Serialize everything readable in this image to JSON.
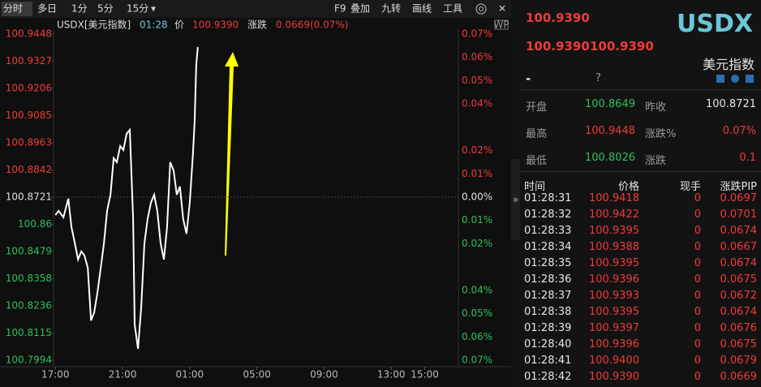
{
  "toolbar": {
    "tabs": [
      "分时",
      "多日",
      "1分",
      "5分",
      "15分"
    ],
    "tools": [
      "F9",
      "叠加",
      "九转",
      "画线",
      "工具"
    ]
  },
  "chart_header": {
    "symbol": "USDX[美元指数]",
    "time": "01:28",
    "price_label": "价",
    "price": "100.9390",
    "change_label": "涨跌",
    "change": "0.0669(0.07%)"
  },
  "chart_data": {
    "type": "line",
    "color": "#ffffff",
    "x": [
      0,
      0.19,
      0.48,
      0.77,
      0.96,
      1.16,
      1.35,
      1.54,
      1.73,
      1.93,
      2.12,
      2.31,
      2.51,
      2.7,
      2.89,
      3.08,
      3.28,
      3.47,
      3.66,
      3.86,
      4.05,
      4.24,
      4.43,
      4.63,
      4.72,
      4.92,
      5.11,
      5.3,
      5.49,
      5.69,
      5.88,
      6.07,
      6.27,
      6.46,
      6.65,
      6.84,
      7.04,
      7.23,
      7.42,
      7.61,
      7.81,
      8.0,
      8.19,
      8.29,
      8.39,
      8.48
    ],
    "values": [
      100.8641,
      100.866,
      100.8631,
      100.8714,
      100.8587,
      100.8515,
      100.8443,
      100.8479,
      100.8461,
      100.8406,
      100.8171,
      100.8207,
      100.8298,
      100.8406,
      100.8515,
      100.866,
      100.8732,
      100.8895,
      100.8877,
      100.8949,
      100.8931,
      100.9003,
      100.9021,
      100.8623,
      100.8153,
      100.8045,
      100.8226,
      100.8515,
      100.8623,
      100.8696,
      100.8732,
      100.866,
      100.8515,
      100.8443,
      100.8587,
      100.8877,
      100.884,
      100.8732,
      100.8768,
      100.8623,
      100.8558,
      100.8696,
      100.8913,
      100.9057,
      100.9311,
      100.939
    ],
    "xlim": [
      -0.4,
      24
    ],
    "xticks": [
      {
        "value": 0,
        "label": "17:00"
      },
      {
        "value": 4,
        "label": "21:00"
      },
      {
        "value": 8,
        "label": "01:00"
      },
      {
        "value": 12,
        "label": "05:00"
      },
      {
        "value": 16,
        "label": "09:00"
      },
      {
        "value": 20,
        "label": "13:00"
      },
      {
        "value": 22,
        "label": "15:00"
      }
    ],
    "ylim": [
      100.7994,
      100.9448
    ],
    "yticks": [
      100.9448,
      100.9327,
      100.9206,
      100.9085,
      100.8963,
      100.8842,
      100.8721,
      100.86,
      100.8479,
      100.8358,
      100.8236,
      100.8115,
      100.7994
    ],
    "y2lim": [
      -0.07,
      0.07
    ],
    "y2ticks": [
      {
        "value": 0.07,
        "label": "0.07%"
      },
      {
        "value": 0.06,
        "label": "0.06%"
      },
      {
        "value": 0.05,
        "label": "0.05%"
      },
      {
        "value": 0.04,
        "label": "0.04%"
      },
      {
        "value": 0.02,
        "label": "0.02%"
      },
      {
        "value": 0.01,
        "label": "0.01%"
      },
      {
        "value": 0,
        "label": "0.00%"
      },
      {
        "value": -0.01,
        "label": "0.01%"
      },
      {
        "value": -0.02,
        "label": "0.02%"
      },
      {
        "value": -0.04,
        "label": "0.04%"
      },
      {
        "value": -0.05,
        "label": "0.05%"
      },
      {
        "value": -0.06,
        "label": "0.06%"
      },
      {
        "value": -0.07,
        "label": "0.07%"
      }
    ]
  },
  "quote": {
    "price": "100.9390",
    "code": "USDX",
    "bid": "100.9390",
    "ask": "100.9390",
    "name": "美元指数",
    "dash": "-",
    "unknown": "?"
  },
  "stats": [
    [
      "开盘",
      "100.8649",
      "昨收",
      "100.8721"
    ],
    [
      "最高",
      "100.9448",
      "涨跌%",
      "0.07%"
    ],
    [
      "最低",
      "100.8026",
      "涨跌",
      "0.1"
    ]
  ],
  "trades": {
    "headers": [
      "时间",
      "价格",
      "现手",
      "涨跌PIP"
    ],
    "rows": [
      [
        "01:28:31",
        "100.9418",
        "0",
        "0.0697"
      ],
      [
        "01:28:32",
        "100.9422",
        "0",
        "0.0701"
      ],
      [
        "01:28:33",
        "100.9395",
        "0",
        "0.0674"
      ],
      [
        "01:28:34",
        "100.9388",
        "0",
        "0.0667"
      ],
      [
        "01:28:35",
        "100.9395",
        "0",
        "0.0674"
      ],
      [
        "01:28:36",
        "100.9396",
        "0",
        "0.0675"
      ],
      [
        "01:28:37",
        "100.9393",
        "0",
        "0.0672"
      ],
      [
        "01:28:38",
        "100.9395",
        "0",
        "0.0674"
      ],
      [
        "01:28:39",
        "100.9397",
        "0",
        "0.0676"
      ],
      [
        "01:28:40",
        "100.9396",
        "0",
        "0.0675"
      ],
      [
        "01:28:41",
        "100.9400",
        "0",
        "0.0679"
      ],
      [
        "01:28:42",
        "100.9390",
        "0",
        "0.0669"
      ]
    ]
  }
}
